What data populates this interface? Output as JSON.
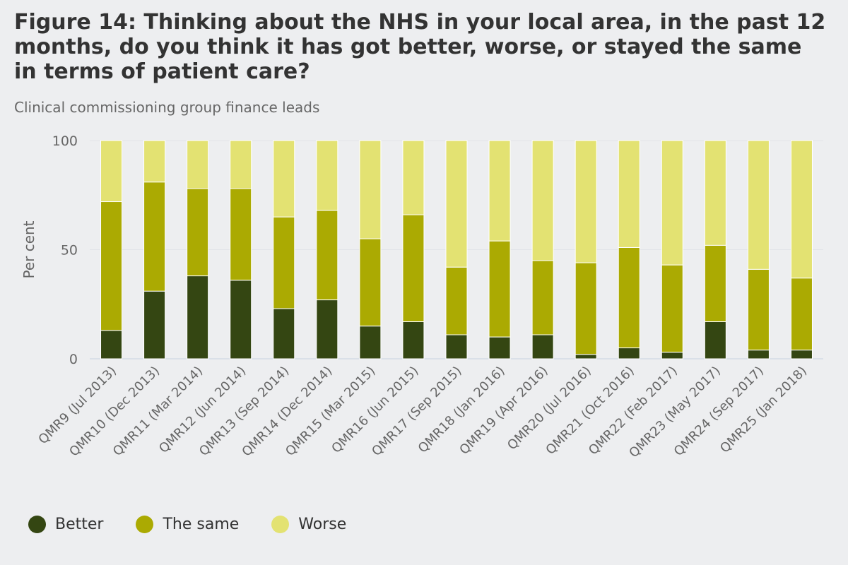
{
  "title": "Figure 14: Thinking about the NHS in your local area, in the past 12 months, do you think it has got better, worse, or stayed the same in terms of patient care?",
  "subtitle": "Clinical commissioning group finance leads",
  "colors": {
    "better": "#344612",
    "same": "#abaa02",
    "worse": "#e3e272"
  },
  "chart_data": {
    "type": "bar",
    "stacked": true,
    "ylabel": "Per cent",
    "xlabel": "",
    "ylim": [
      0,
      100
    ],
    "yticks": [
      0,
      50,
      100
    ],
    "grid": true,
    "legend_position": "bottom-left",
    "categories": [
      "QMR9 (Jul 2013)",
      "QMR10 (Dec 2013)",
      "QMR11 (Mar 2014)",
      "QMR12 (Jun 2014)",
      "QMR13 (Sep 2014)",
      "QMR14 (Dec 2014)",
      "QMR15 (Mar 2015)",
      "QMR16 (Jun 2015)",
      "QMR17 (Sep 2015)",
      "QMR18 (Jan 2016)",
      "QMR19 (Apr 2016)",
      "QMR20 (Jul 2016)",
      "QMR21 (Oct 2016)",
      "QMR22 (Feb 2017)",
      "QMR23 (May 2017)",
      "QMR24 (Sep 2017)",
      "QMR25 (Jan 2018)"
    ],
    "series": [
      {
        "name": "Better",
        "color": "#344612",
        "values": [
          13,
          31,
          38,
          36,
          23,
          27,
          15,
          17,
          11,
          10,
          11,
          2,
          5,
          3,
          17,
          4,
          4
        ]
      },
      {
        "name": "The same",
        "color": "#abaa02",
        "values": [
          59,
          50,
          40,
          42,
          42,
          41,
          40,
          49,
          31,
          44,
          34,
          42,
          46,
          40,
          35,
          37,
          33
        ]
      },
      {
        "name": "Worse",
        "color": "#e3e272",
        "values": [
          28,
          19,
          22,
          22,
          35,
          32,
          45,
          34,
          58,
          46,
          55,
          56,
          49,
          57,
          48,
          59,
          63
        ]
      }
    ]
  }
}
